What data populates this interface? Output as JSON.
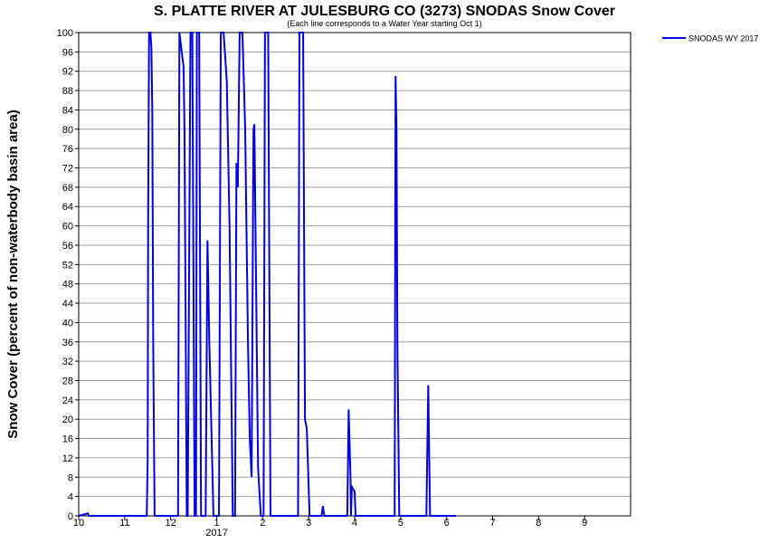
{
  "chart_data": {
    "type": "line",
    "title": "S. PLATTE RIVER AT JULESBURG CO (3273) SNODAS Snow Cover",
    "subtitle": "(Each line corresponds to a Water Year starting Oct 1)",
    "y_label": "Snow Cover (percent of non-waterbody basin area)",
    "year_label": "2017",
    "x": [
      0,
      0.2,
      0.22,
      1.48,
      1.5,
      1.51,
      1.53,
      1.56,
      1.58,
      1.6,
      1.62,
      1.65,
      2.16,
      2.19,
      2.24,
      2.28,
      2.3,
      2.35,
      2.37,
      2.43,
      2.47,
      2.52,
      2.55,
      2.57,
      2.62,
      2.66,
      2.76,
      2.8,
      2.84,
      2.93,
      3.05,
      3.09,
      3.15,
      3.22,
      3.28,
      3.35,
      3.4,
      3.43,
      3.46,
      3.5,
      3.56,
      3.62,
      3.68,
      3.72,
      3.76,
      3.8,
      3.82,
      3.9,
      3.96,
      4.02,
      4.05,
      4.12,
      4.17,
      4.77,
      4.8,
      4.88,
      4.92,
      4.96,
      5.02,
      5.28,
      5.31,
      5.34,
      5.84,
      5.87,
      5.91,
      5.92,
      5.94,
      6.0,
      6.02,
      6.87,
      6.89,
      6.91,
      6.93,
      6.97,
      7.56,
      7.6,
      7.64,
      8.2
    ],
    "series": [
      {
        "name": "SNODAS WY 2017",
        "color": "#0000e6",
        "values": [
          0,
          0.5,
          0,
          0,
          12,
          62,
          100,
          100,
          97,
          84,
          36,
          0,
          0,
          100,
          96,
          93,
          80,
          0,
          0,
          100,
          100,
          0,
          0,
          100,
          100,
          0,
          0,
          57,
          36,
          0,
          0,
          100,
          100,
          90,
          60,
          0,
          0,
          73,
          68,
          100,
          100,
          80,
          36,
          16,
          8,
          80,
          81,
          10,
          0,
          0,
          100,
          100,
          0,
          0,
          100,
          100,
          20,
          18,
          0,
          0,
          2,
          0,
          0,
          22,
          8,
          0,
          6,
          5,
          0,
          0,
          91,
          80,
          35,
          0,
          0,
          27,
          0,
          0
        ]
      }
    ],
    "xlim": [
      0,
      12
    ],
    "xticks": [
      {
        "value": 0,
        "label": "10"
      },
      {
        "value": 1,
        "label": "11"
      },
      {
        "value": 2,
        "label": "12"
      },
      {
        "value": 3,
        "label": "1"
      },
      {
        "value": 4,
        "label": "2"
      },
      {
        "value": 5,
        "label": "3"
      },
      {
        "value": 6,
        "label": "4"
      },
      {
        "value": 7,
        "label": "5"
      },
      {
        "value": 8,
        "label": "6"
      },
      {
        "value": 9,
        "label": "7"
      },
      {
        "value": 10,
        "label": "8"
      },
      {
        "value": 11,
        "label": "9"
      }
    ],
    "ylim": [
      0,
      100
    ],
    "yticks": [
      0,
      4,
      8,
      12,
      16,
      20,
      24,
      28,
      32,
      36,
      40,
      44,
      48,
      52,
      56,
      60,
      64,
      68,
      72,
      76,
      80,
      84,
      88,
      92,
      96,
      100
    ],
    "grid": true,
    "legend": "top-right"
  }
}
